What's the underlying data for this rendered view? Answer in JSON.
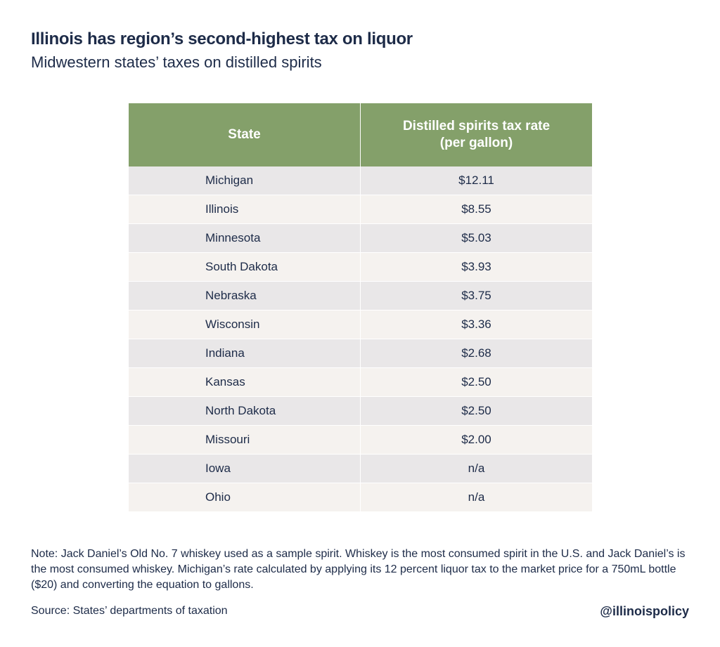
{
  "title": "Illinois has region’s second-highest tax on liquor",
  "subtitle": "Midwestern states’ taxes on distilled spirits",
  "colors": {
    "header": "#84a06a",
    "row_odd": "#e9e7e8",
    "row_even": "#f5f2ef",
    "text": "#1d2b48"
  },
  "chart_data": {
    "type": "table",
    "columns": [
      "State",
      "Distilled spirits tax rate (per gallon)"
    ],
    "column_lines": [
      [
        "State"
      ],
      [
        "Distilled spirits tax rate",
        "(per gallon)"
      ]
    ],
    "rows": [
      [
        "Michigan",
        "$12.11"
      ],
      [
        "Illinois",
        "$8.55"
      ],
      [
        "Minnesota",
        "$5.03"
      ],
      [
        "South Dakota",
        "$3.93"
      ],
      [
        "Nebraska",
        "$3.75"
      ],
      [
        "Wisconsin",
        "$3.36"
      ],
      [
        "Indiana",
        "$2.68"
      ],
      [
        "Kansas",
        "$2.50"
      ],
      [
        "North Dakota",
        "$2.50"
      ],
      [
        "Missouri",
        "$2.00"
      ],
      [
        "Iowa",
        "n/a"
      ],
      [
        "Ohio",
        "n/a"
      ]
    ]
  },
  "note": "Note: Jack Daniel’s Old No. 7 whiskey used as a sample spirit. Whiskey is the most consumed spirit in the U.S. and Jack Daniel’s is the most consumed whiskey. Michigan’s rate calculated by applying its 12 percent liquor tax to the market price for a 750mL bottle ($20) and converting the equation to gallons.",
  "source": "Source: States’ departments of taxation",
  "handle": "@illinoispolicy"
}
